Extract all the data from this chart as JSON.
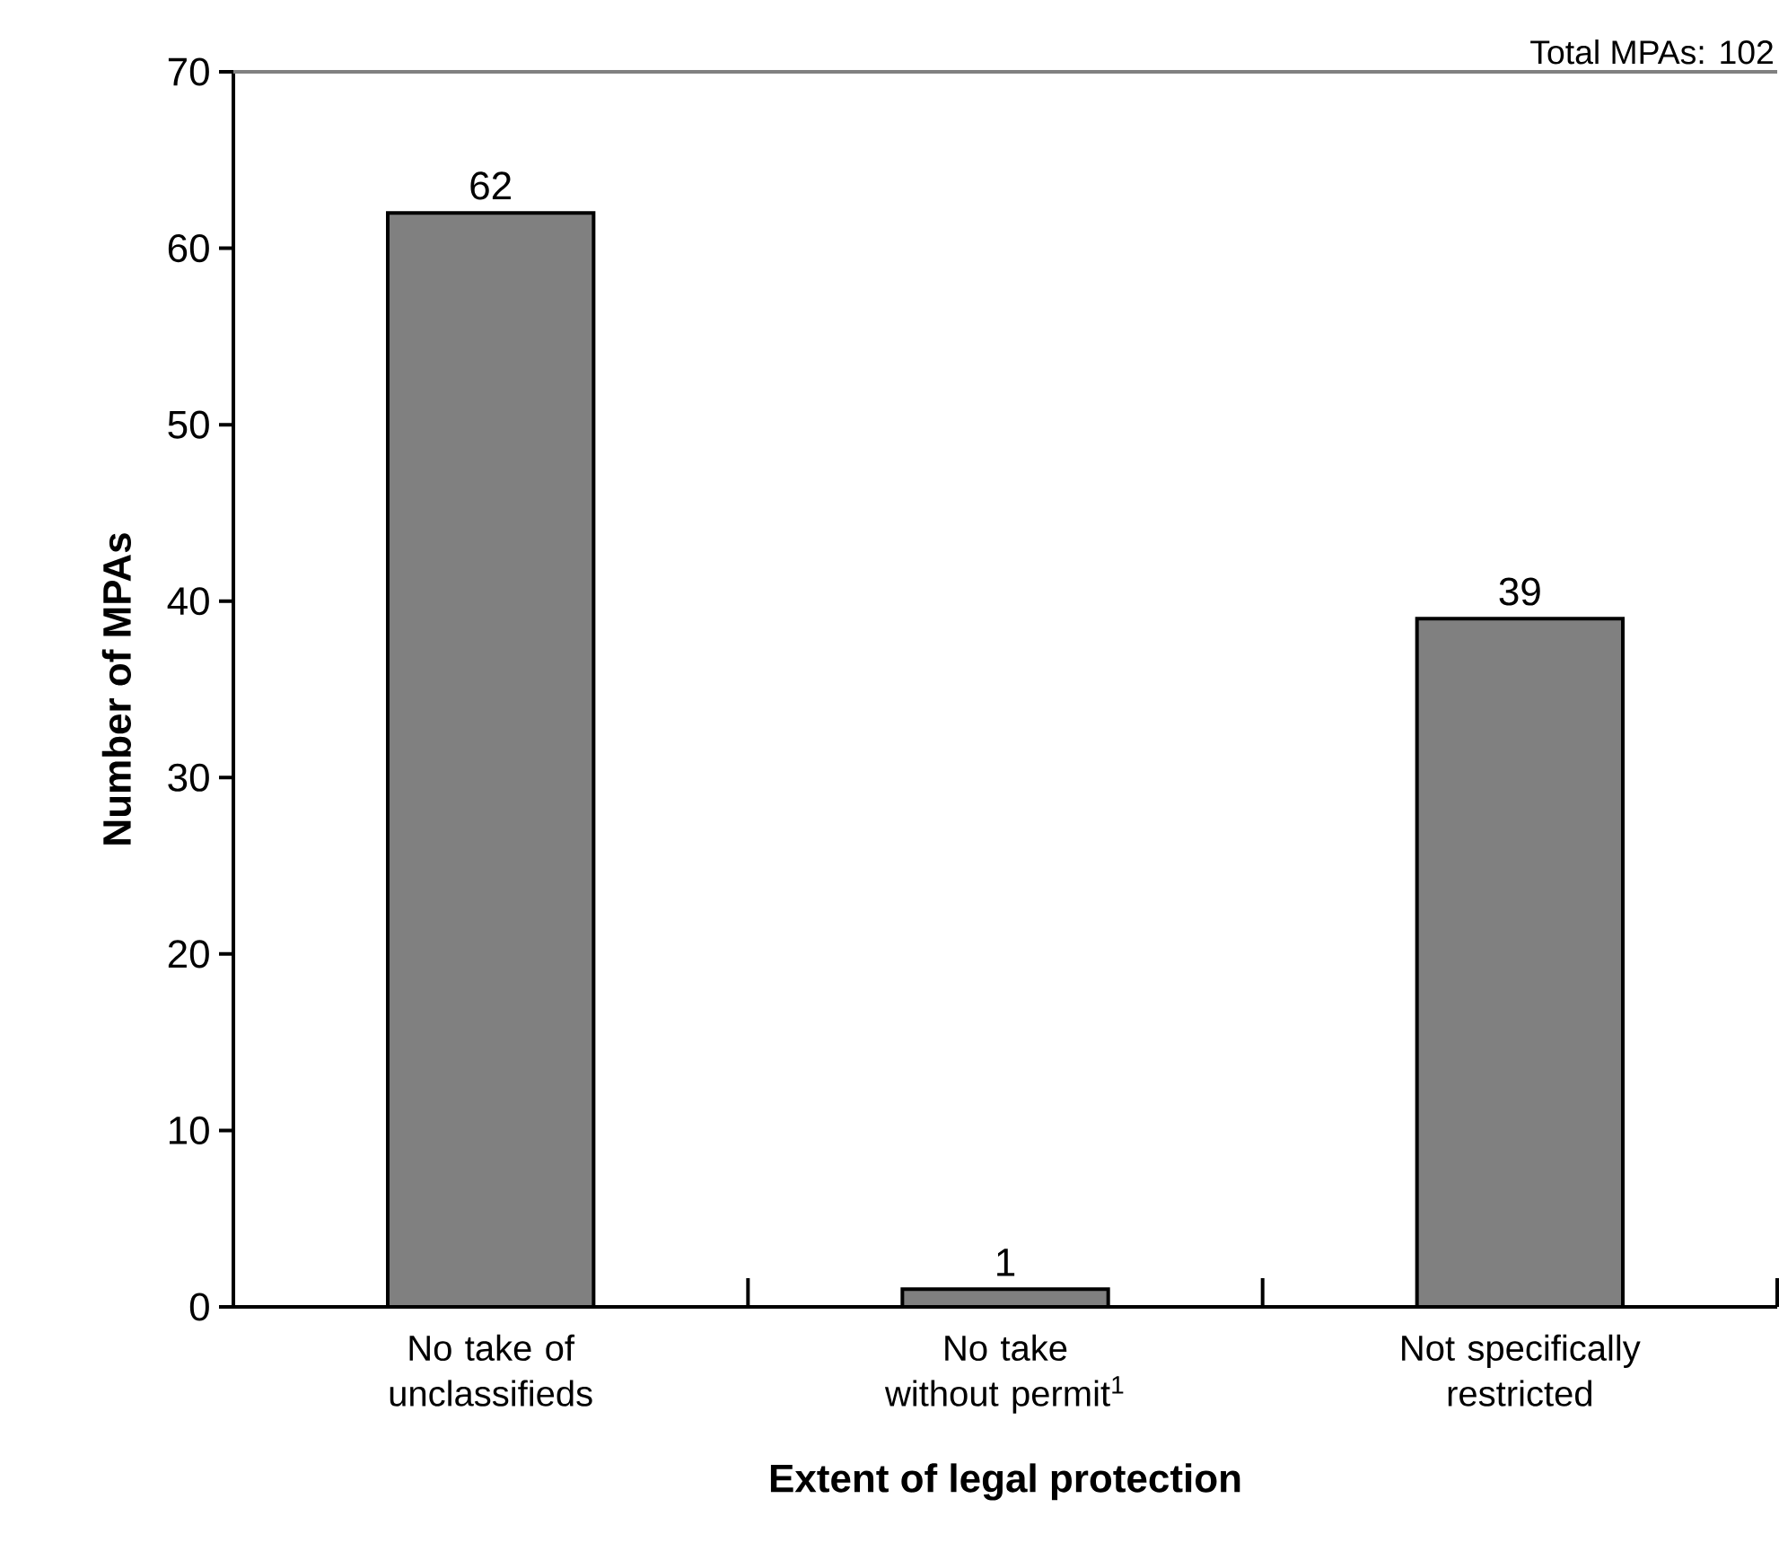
{
  "chart_data": {
    "type": "bar",
    "xlabel": "Extent of legal protection",
    "ylabel": "Number of MPAs",
    "categories": [
      "No take of unclassifieds",
      "No take without permit$^{1}$",
      "Not specifically restricted"
    ],
    "values": [
      62,
      1,
      39
    ],
    "color": "#808080",
    "ylim": [
      0,
      70
    ],
    "yticks": [
      0,
      10,
      20,
      30,
      40,
      50,
      60,
      70
    ],
    "data_labels": true,
    "annotations": [
      "Total MPAs: 102"
    ]
  }
}
